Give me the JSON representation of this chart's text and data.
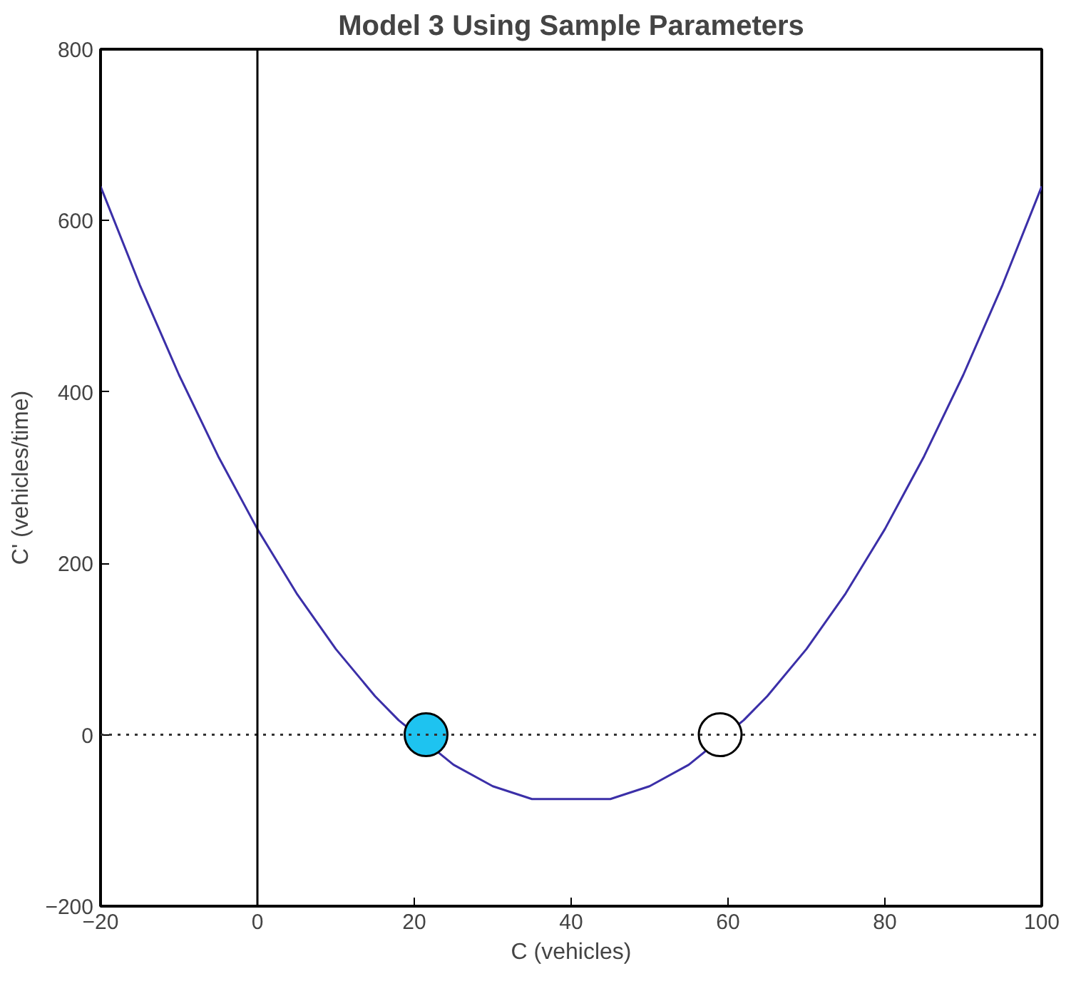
{
  "chart_data": {
    "type": "line",
    "title": "Model 3 Using Sample Parameters",
    "xlabel": "C (vehicles)",
    "ylabel": "C' (vehicles/time)",
    "xlim": [
      -20,
      100
    ],
    "ylim": [
      -200,
      800
    ],
    "xticks": [
      -20,
      0,
      20,
      40,
      60,
      80,
      100
    ],
    "yticks": [
      -200,
      0,
      200,
      400,
      600,
      800
    ],
    "grid": false,
    "series": [
      {
        "color": "#3b2fa8",
        "x": [
          -20,
          -15,
          -10,
          -5,
          0,
          5,
          10,
          15,
          18,
          25,
          30,
          35,
          40,
          45,
          50,
          55,
          62,
          65,
          70,
          75,
          80,
          85,
          90,
          95,
          100
        ],
        "values": [
          640,
          525,
          420,
          325,
          240,
          165,
          100,
          45,
          17,
          -35,
          -60,
          -75,
          -75,
          -75,
          -60,
          -35,
          17,
          45,
          100,
          165,
          240,
          325,
          420,
          525,
          640
        ]
      },
      {
        "type": "scatter",
        "marker": "circle",
        "x": [
          21.5,
          59
        ],
        "values": [
          0,
          0
        ],
        "colors": [
          "#1ec3f0",
          "#ffffff"
        ]
      }
    ],
    "ref_lines": [
      {
        "axis": "y",
        "value": 0,
        "color": "#333333",
        "line_style": "dotted"
      },
      {
        "axis": "x",
        "value": 0,
        "color": "#000000",
        "line_style": "solid"
      }
    ]
  }
}
